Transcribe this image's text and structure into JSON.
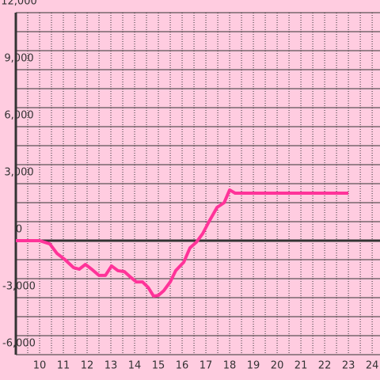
{
  "chart_data": {
    "type": "line",
    "x": [
      9,
      10,
      10.43,
      10.73,
      11.07,
      11.43,
      11.67,
      11.93,
      12.23,
      12.5,
      12.77,
      13.03,
      13.3,
      13.57,
      13.83,
      14.07,
      14.33,
      14.57,
      14.8,
      15,
      15.23,
      15.5,
      15.73,
      16.07,
      16.33,
      16.6,
      16.87,
      17.13,
      17.47,
      17.77,
      18,
      18.23,
      23
    ],
    "series": [
      {
        "color": "#ff3399",
        "values": [
          0,
          0,
          -170,
          -670,
          -1000,
          -1420,
          -1500,
          -1250,
          -1540,
          -1830,
          -1830,
          -1330,
          -1580,
          -1630,
          -1920,
          -2170,
          -2170,
          -2460,
          -2920,
          -2880,
          -2630,
          -2170,
          -1580,
          -1130,
          -380,
          -80,
          380,
          1000,
          1750,
          2000,
          2670,
          2500,
          2500
        ]
      }
    ],
    "xlim": [
      9,
      24.33
    ],
    "xticks": [
      10,
      11,
      12,
      13,
      14,
      15,
      16,
      17,
      18,
      19,
      20,
      21,
      22,
      23,
      24
    ],
    "x_minor_ticks": [
      9.5,
      10.5,
      11.5,
      12.5,
      13.5,
      14.5,
      15.5,
      16.5,
      17.5,
      18.5,
      19.5,
      20.5,
      21.5,
      22.5,
      23.5
    ],
    "ylim": [
      -6000,
      12000
    ],
    "yticks": [
      {
        "value": -6000,
        "label": "-6,000"
      },
      {
        "value": -3000,
        "label": "-3,000"
      },
      0,
      {
        "value": 3000,
        "label": "3,000"
      },
      {
        "value": 6000,
        "label": "6,000"
      },
      {
        "value": 9000,
        "label": "9,000"
      },
      {
        "value": 12000,
        "label": "12,000"
      }
    ],
    "y_minor_ticks": [
      -5000,
      -4000,
      -2000,
      -1000,
      1000,
      2000,
      4000,
      5000,
      7000,
      8000,
      10000,
      11000
    ],
    "grid": true
  }
}
